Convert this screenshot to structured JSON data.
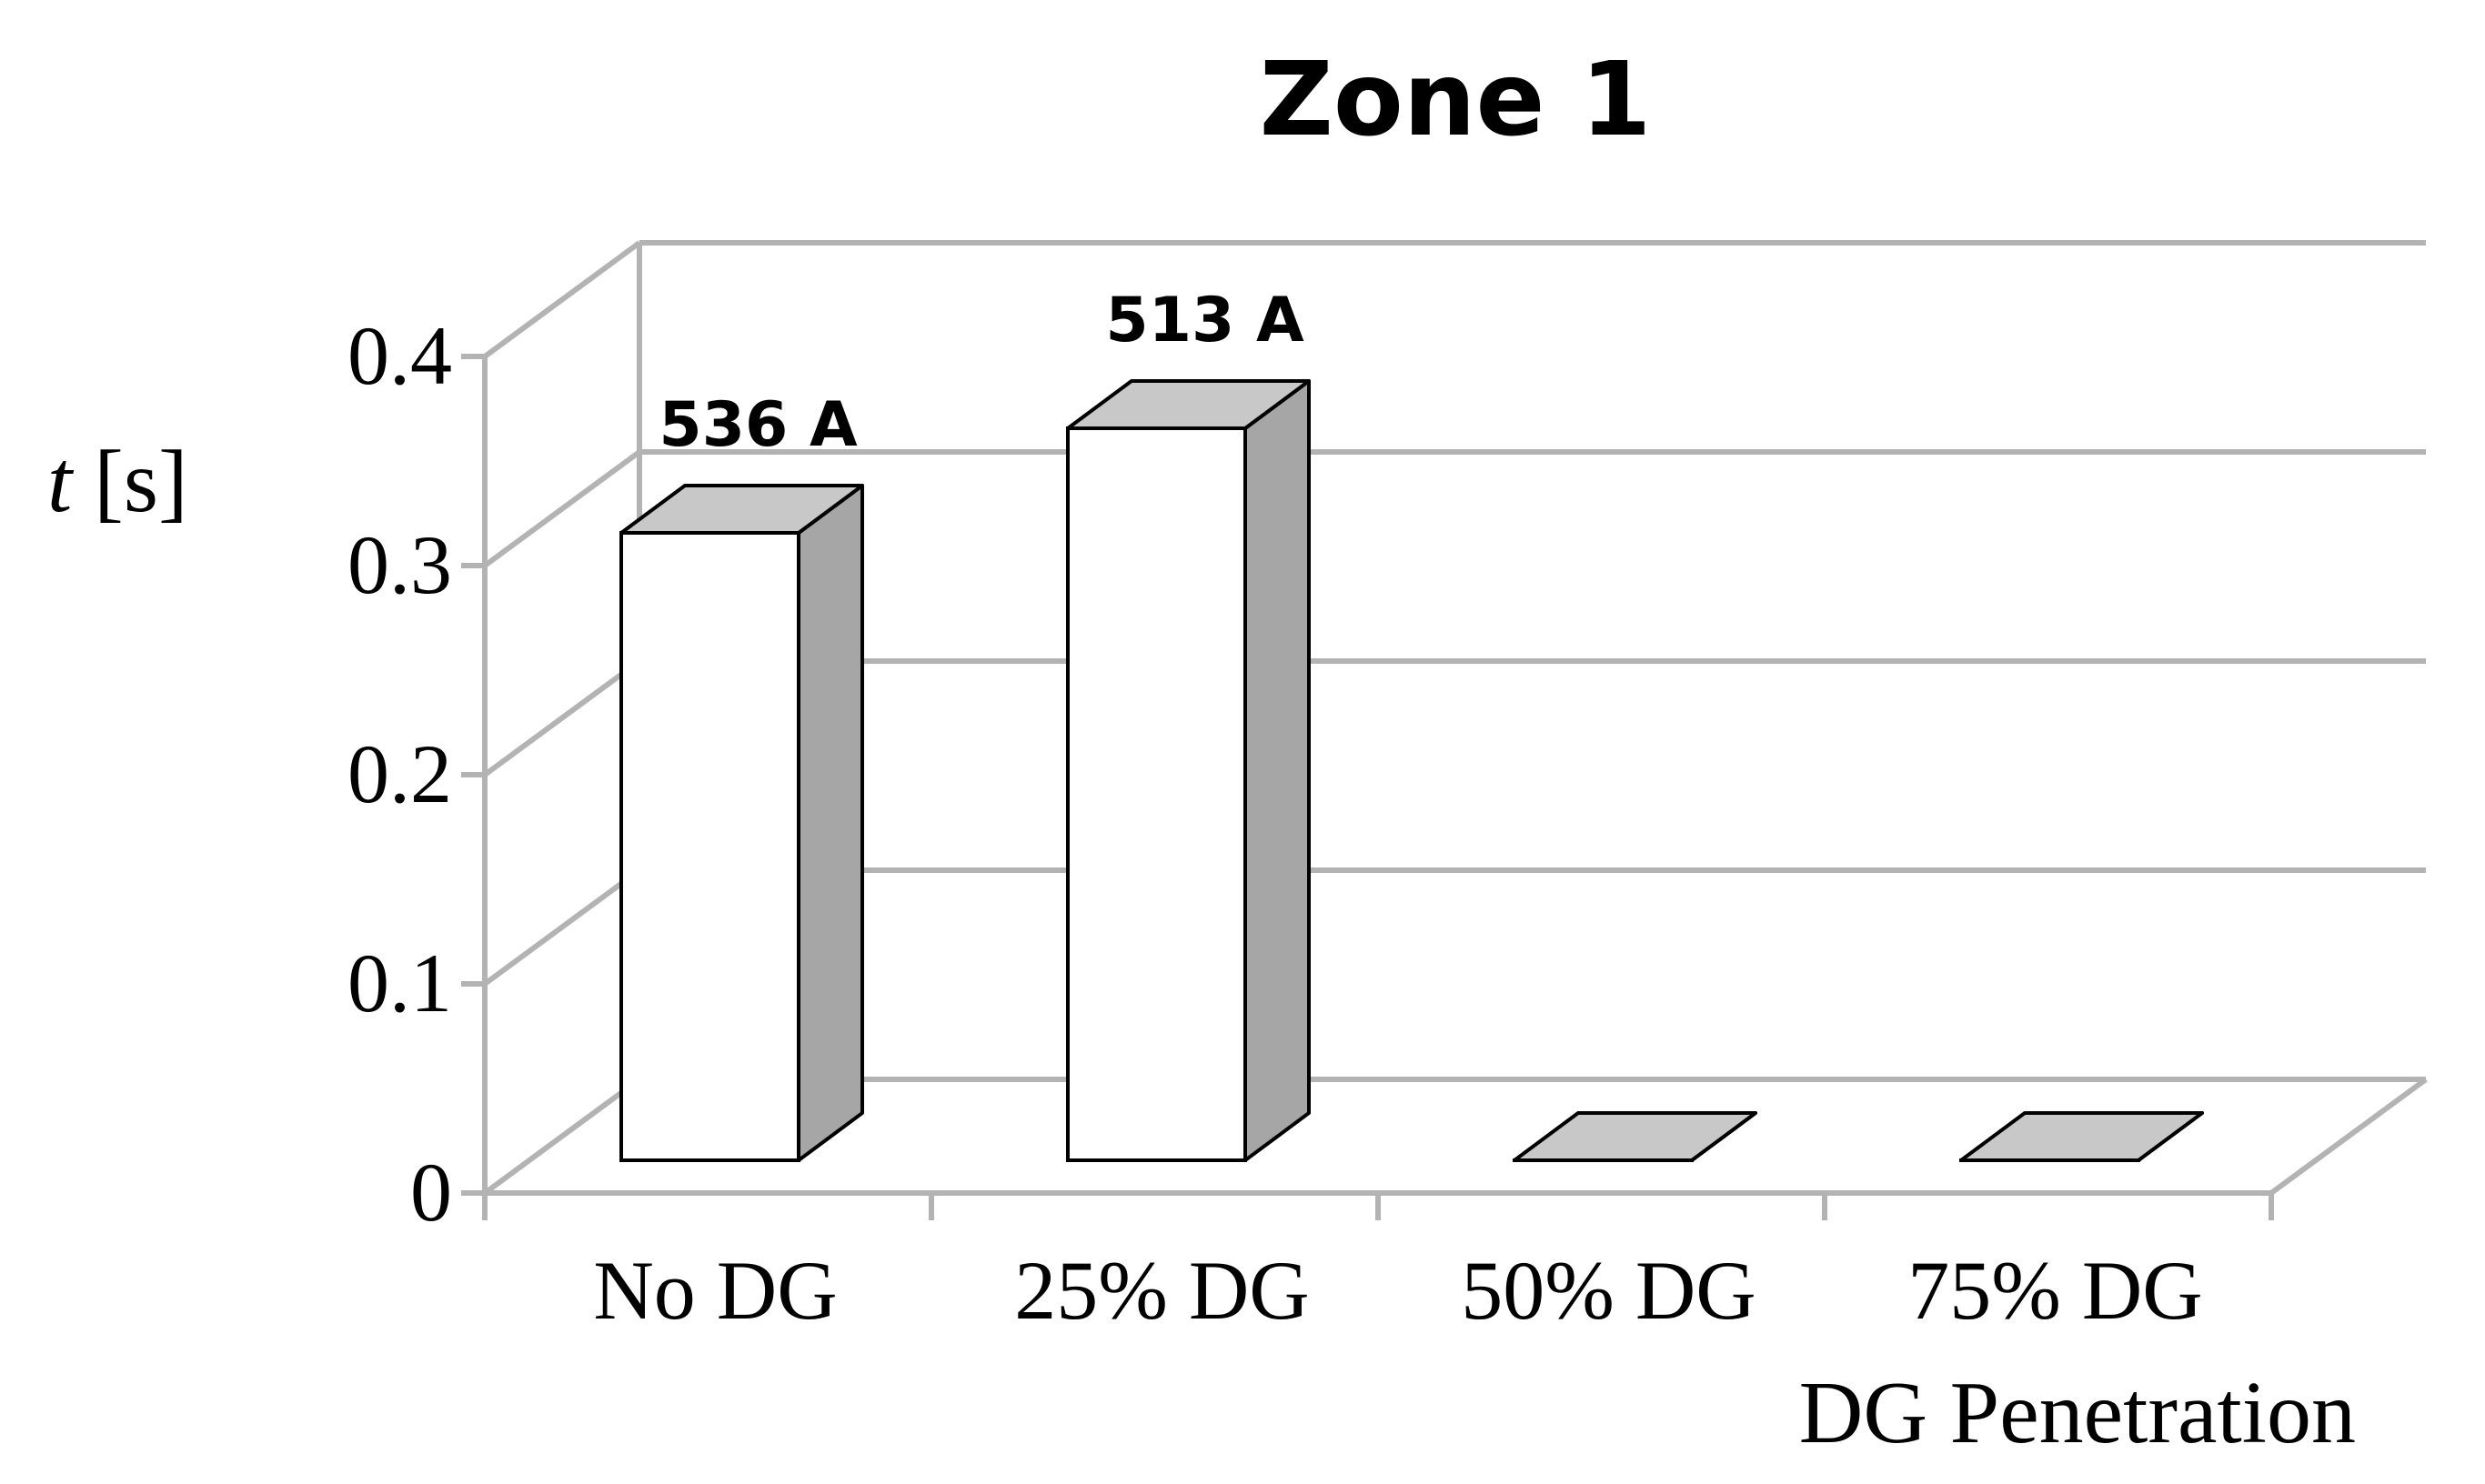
{
  "chart_data": {
    "type": "bar",
    "style": "3d",
    "title": "Zone 1",
    "ylabel_var": "t",
    "ylabel_unit": "[s]",
    "xlabel": "DG Penetration",
    "ylim": [
      0,
      0.4
    ],
    "yticks": [
      "0",
      "0.1",
      "0.2",
      "0.3",
      "0.4"
    ],
    "ytick_values": [
      0,
      0.1,
      0.2,
      0.3,
      0.4
    ],
    "grid": true,
    "categories": [
      "No DG",
      "25% DG",
      "50% DG",
      "75% DG"
    ],
    "values": [
      0.3,
      0.35,
      0,
      0
    ],
    "data_labels": [
      "536 A",
      "513 A",
      "",
      ""
    ],
    "colors": {
      "bar_front": "#ffffff",
      "bar_side": "#a6a6a6",
      "bar_top": "#c8c8c8",
      "bar_edge": "#000000",
      "grid": "#b3b3b3",
      "axis": "#b3b3b3",
      "text": "#000000"
    }
  }
}
